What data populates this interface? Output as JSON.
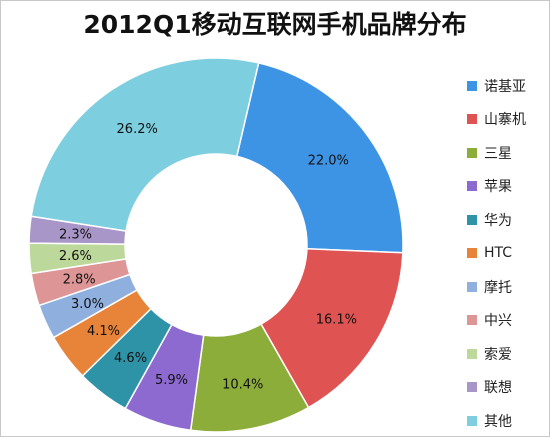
{
  "chart_data": {
    "type": "pie",
    "title": "2012Q1移动互联网手机品牌分布",
    "donut": true,
    "legend_position": "right",
    "series": [
      {
        "name": "诺基亚",
        "value": 22.0,
        "label": "22.0%",
        "color": "#3E94E4"
      },
      {
        "name": "山寨机",
        "value": 16.1,
        "label": "16.1%",
        "color": "#E05353"
      },
      {
        "name": "三星",
        "value": 10.4,
        "label": "10.4%",
        "color": "#8CAD3A"
      },
      {
        "name": "苹果",
        "value": 5.9,
        "label": "5.9%",
        "color": "#8C6ACF"
      },
      {
        "name": "华为",
        "value": 4.6,
        "label": "4.6%",
        "color": "#2F93A8"
      },
      {
        "name": "HTC",
        "value": 4.1,
        "label": "4.1%",
        "color": "#E8843A"
      },
      {
        "name": "摩托",
        "value": 3.0,
        "label": "3.0%",
        "color": "#8FB0DF"
      },
      {
        "name": "中兴",
        "value": 2.8,
        "label": "2.8%",
        "color": "#DE9596"
      },
      {
        "name": "索爱",
        "value": 2.6,
        "label": "2.6%",
        "color": "#BCD89A"
      },
      {
        "name": "联想",
        "value": 2.3,
        "label": "2.3%",
        "color": "#A996C8"
      },
      {
        "name": "其他",
        "value": 26.2,
        "label": "26.2%",
        "color": "#7DCEDF"
      }
    ]
  }
}
